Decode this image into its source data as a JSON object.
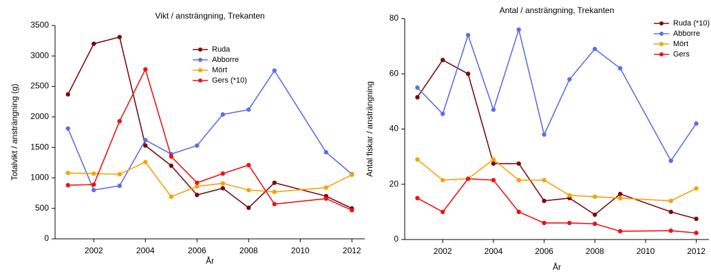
{
  "chart_data": [
    {
      "type": "line",
      "title": "Vikt / ansträngning, Trekanten",
      "x_label": "År",
      "y_label": "Totalvikt / ansträngning (g)",
      "x": [
        2001,
        2002,
        2003,
        2004,
        2005,
        2006,
        2007,
        2008,
        2009,
        2011,
        2012
      ],
      "xlim": [
        2000.5,
        2012.5
      ],
      "xticks": [
        2002,
        2004,
        2006,
        2008,
        2010,
        2012
      ],
      "ylim": [
        0,
        3500
      ],
      "yticks": [
        0,
        500,
        1000,
        1500,
        2000,
        2500,
        3000,
        3500
      ],
      "legend": "upper center",
      "series": [
        {
          "name": "Ruda",
          "color": "#7b0a0a",
          "values": [
            2370,
            3200,
            3310,
            1530,
            1200,
            720,
            830,
            510,
            920,
            700,
            500
          ]
        },
        {
          "name": "Abborre",
          "color": "#5b6ee8",
          "values": [
            1810,
            800,
            870,
            1620,
            1390,
            1530,
            2040,
            2120,
            2760,
            1420,
            1060
          ]
        },
        {
          "name": "Mört",
          "color": "#f5a300",
          "values": [
            1080,
            1070,
            1060,
            1260,
            690,
            860,
            910,
            800,
            770,
            840,
            1050
          ]
        },
        {
          "name": "Gers (*10)",
          "color": "#ee1111",
          "values": [
            880,
            890,
            1930,
            2780,
            1350,
            920,
            1070,
            1210,
            570,
            660,
            470
          ]
        }
      ]
    },
    {
      "type": "line",
      "title": "Antal / ansträngning, Trekanten",
      "x_label": "År",
      "y_label": "Antal fiskar / ansträngning",
      "x": [
        2001,
        2002,
        2003,
        2004,
        2005,
        2006,
        2007,
        2008,
        2009,
        2011,
        2012
      ],
      "xlim": [
        2000.5,
        2012.5
      ],
      "xticks": [
        2002,
        2004,
        2006,
        2008,
        2010,
        2012
      ],
      "ylim": [
        0,
        80
      ],
      "yticks": [
        0,
        20,
        40,
        60,
        80
      ],
      "legend": "upper right",
      "series": [
        {
          "name": "Ruda (*10)",
          "color": "#7b0a0a",
          "values": [
            51.5,
            65,
            60,
            27.5,
            27.5,
            14,
            15,
            9,
            16.5,
            10,
            7.5
          ]
        },
        {
          "name": "Abborre",
          "color": "#5b6ee8",
          "values": [
            55,
            45.5,
            74,
            47,
            76,
            38,
            58,
            69,
            62,
            28.5,
            42
          ]
        },
        {
          "name": "Mört",
          "color": "#f5a300",
          "values": [
            29,
            21.5,
            22,
            29,
            21.5,
            21.5,
            16,
            15.5,
            15,
            14,
            18.5
          ]
        },
        {
          "name": "Gers",
          "color": "#ee1111",
          "values": [
            15,
            10,
            22,
            21.5,
            10,
            6,
            6,
            5.7,
            3,
            3.2,
            2.4
          ]
        }
      ]
    }
  ]
}
